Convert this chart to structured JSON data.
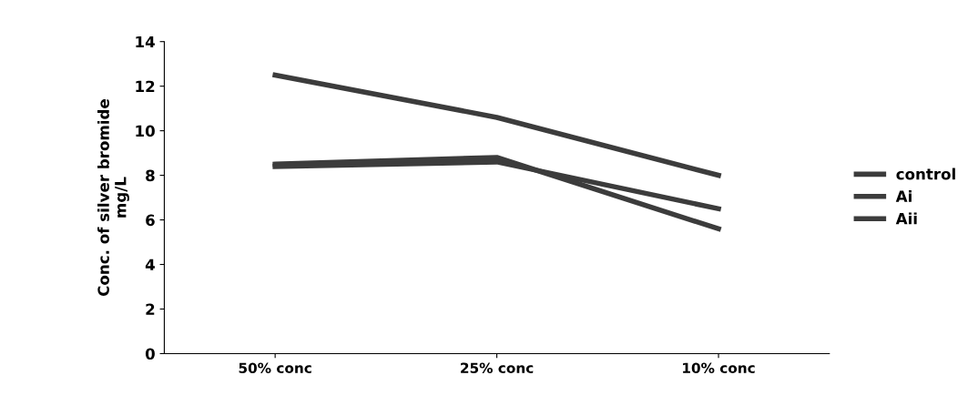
{
  "chart_data": {
    "type": "line",
    "ylabel": "Conc. of silver bromide\nmg/L",
    "categories": [
      "50% conc",
      "25% conc",
      "10% conc"
    ],
    "series": [
      {
        "name": "control",
        "color": "#3c3c3c",
        "values": [
          12.5,
          10.6,
          8.0
        ]
      },
      {
        "name": "Ai",
        "color": "#3c3c3c",
        "values": [
          8.4,
          8.6,
          6.5
        ]
      },
      {
        "name": "Aii",
        "color": "#3c3c3c",
        "values": [
          8.5,
          8.8,
          5.6
        ]
      }
    ],
    "ylim": [
      0,
      14
    ],
    "yticks": [
      0,
      2,
      4,
      6,
      8,
      10,
      12,
      14
    ],
    "grid": false,
    "legend": "right",
    "marker": "none",
    "line_style": "solid"
  }
}
